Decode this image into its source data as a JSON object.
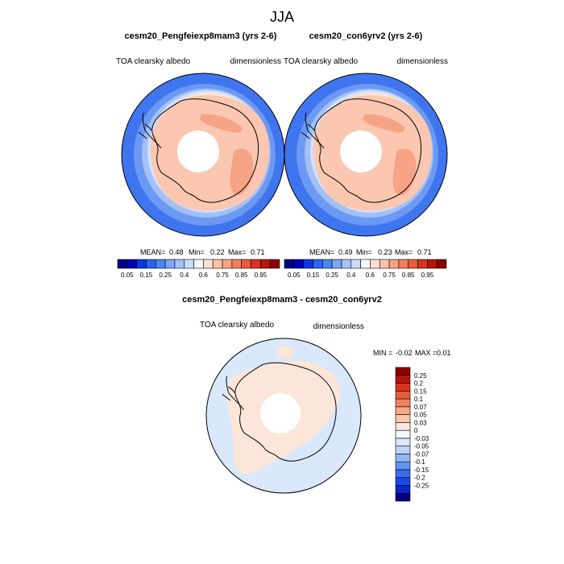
{
  "page": {
    "title": "JJA"
  },
  "colors": {
    "abs_scale": [
      "#000080",
      "#0000b8",
      "#0a37e6",
      "#2a64f0",
      "#4d84f2",
      "#7aa6f5",
      "#a4c2f7",
      "#cadcfa",
      "#f4f8fd",
      "#fde0d2",
      "#fcc3ab",
      "#f9a283",
      "#f37e5d",
      "#e85a3b",
      "#d8331f",
      "#b7140c",
      "#8c0000"
    ],
    "diff_scale": [
      "#000080",
      "#0a25c8",
      "#1b49e6",
      "#3b6cf0",
      "#6493f2",
      "#93b6f5",
      "#bcd3f8",
      "#d9e8fb",
      "#f4f8fd",
      "#fce6da",
      "#fac6ad",
      "#f6a684",
      "#ef835f",
      "#e75c3b",
      "#d8331f",
      "#b7140c",
      "#8c0000"
    ],
    "land_line": "#000000"
  },
  "chart_data": [
    {
      "type": "heatmap",
      "projection": "south-polar-stereographic",
      "title": "cesm20_Pengfeiexp8mam3 (yrs 2-6)",
      "field_label": "TOA clearsky albedo",
      "units": "dimensionless",
      "stats": {
        "mean_label": "MEAN=",
        "mean": "0.48",
        "min_label": "Min=",
        "min": "0.22",
        "max_label": "Max=",
        "max": "0.71"
      },
      "colorbar": {
        "orientation": "horizontal",
        "tick_labels": [
          "0.05",
          "0.15",
          "0.25",
          "0.4",
          "0.6",
          "0.75",
          "0.85",
          "0.95"
        ]
      }
    },
    {
      "type": "heatmap",
      "projection": "south-polar-stereographic",
      "title": "cesm20_con6yrv2 (yrs 2-6)",
      "field_label": "TOA clearsky albedo",
      "units": "dimensionless",
      "stats": {
        "mean_label": "MEAN=",
        "mean": "0.49",
        "min_label": "Min=",
        "min": "0.23",
        "max_label": "Max=",
        "max": "0.71"
      },
      "colorbar": {
        "orientation": "horizontal",
        "tick_labels": [
          "0.05",
          "0.15",
          "0.25",
          "0.4",
          "0.6",
          "0.75",
          "0.85",
          "0.95"
        ]
      }
    },
    {
      "type": "heatmap",
      "projection": "south-polar-stereographic",
      "title": "cesm20_Pengfeiexp8mam3 - cesm20_con6yrv2",
      "field_label": "TOA clearsky albedo",
      "units": "dimensionless",
      "stats": {
        "min_label": "MIN =",
        "min": "-0.02",
        "max_label": "MAX =",
        "max": "0.01"
      },
      "colorbar": {
        "orientation": "vertical",
        "tick_labels": [
          "0.25",
          "0.2",
          "0.15",
          "0.1",
          "0.07",
          "0.05",
          "0.03",
          "0",
          "-0.03",
          "-0.05",
          "-0.07",
          "-0.1",
          "-0.15",
          "-0.2",
          "-0.25"
        ]
      }
    }
  ]
}
